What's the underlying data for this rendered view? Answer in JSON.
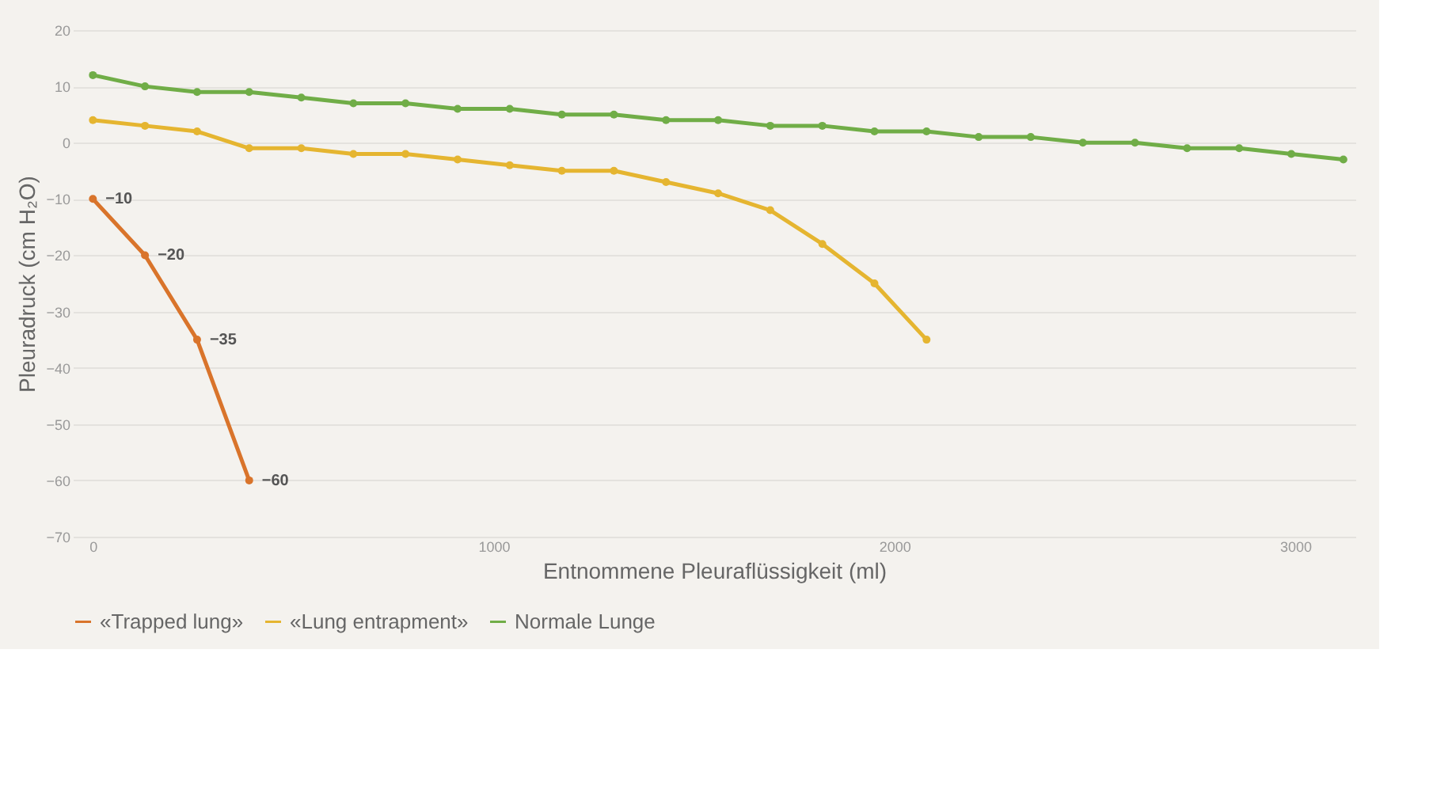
{
  "chart_data": {
    "type": "line",
    "xlabel": "Entnommene Pleuraflüssigkeit (ml)",
    "ylabel": "Pleuradruck (cm H₂O)",
    "xlim": [
      -50,
      3150
    ],
    "xticks": [
      0,
      1000,
      2000,
      3000
    ],
    "ylim": [
      -70,
      20
    ],
    "yticks": [
      20,
      10,
      0,
      -10,
      -20,
      -30,
      -40,
      -50,
      -60,
      -70
    ],
    "grid": "y",
    "legend": "bottom",
    "marker": "circle",
    "line_style": "solid",
    "series": [
      {
        "name": "«Trapped lung»",
        "color": "#d9742b",
        "data_labels": true,
        "x": [
          0,
          130,
          260,
          390
        ],
        "values": [
          -10,
          -20,
          -35,
          -60
        ]
      },
      {
        "name": "«Lung entrapment»",
        "color": "#e5b530",
        "x": [
          0,
          130,
          260,
          390,
          520,
          650,
          780,
          910,
          1040,
          1170,
          1300,
          1430,
          1560,
          1690,
          1820,
          1950,
          2080
        ],
        "values": [
          4,
          3,
          2,
          -1,
          -1,
          -2,
          -2,
          -3,
          -4,
          -5,
          -5,
          -7,
          -9,
          -12,
          -18,
          -25,
          -35
        ]
      },
      {
        "name": "Normale Lunge",
        "color": "#70ad47",
        "x": [
          0,
          130,
          260,
          390,
          520,
          650,
          780,
          910,
          1040,
          1170,
          1300,
          1430,
          1560,
          1690,
          1820,
          1950,
          2080,
          2210,
          2340,
          2470,
          2600,
          2730,
          2860,
          2990,
          3120
        ],
        "values": [
          12,
          10,
          9,
          9,
          8,
          7,
          7,
          6,
          6,
          5,
          5,
          4,
          4,
          3,
          3,
          2,
          2,
          1,
          1,
          0,
          0,
          -1,
          -1,
          -2,
          -3
        ]
      }
    ]
  }
}
